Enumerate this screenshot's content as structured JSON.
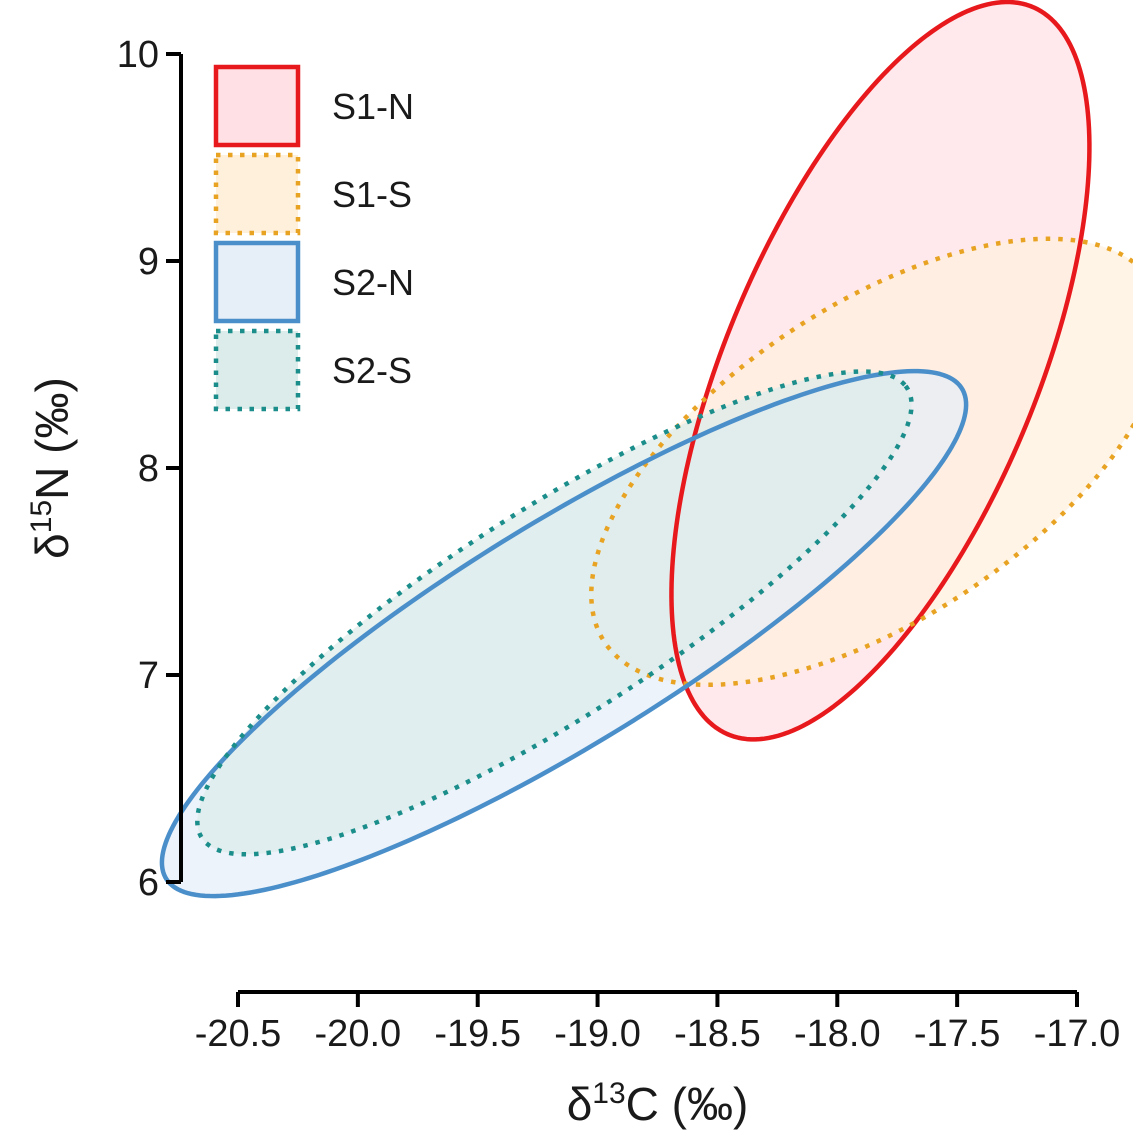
{
  "chart_data": {
    "type": "scatter",
    "subtype": "standard-ellipses",
    "xlabel": {
      "base": "δ",
      "sup": "13",
      "rest": "C (‰)"
    },
    "ylabel": {
      "base": "δ",
      "sup": "15",
      "rest": "N (‰)"
    },
    "xlim": [
      -20.5,
      -17.0
    ],
    "ylim": [
      6,
      10
    ],
    "x_ticks": [
      -20.5,
      -20.0,
      -19.5,
      -19.0,
      -18.5,
      -18.0,
      -17.5,
      -17.0
    ],
    "x_tick_labels": [
      "-20.5",
      "-20.0",
      "-19.5",
      "-19.0",
      "-18.5",
      "-18.0",
      "-17.5",
      "-17.0"
    ],
    "y_ticks": [
      6,
      7,
      8,
      9,
      10
    ],
    "y_tick_labels": [
      "6",
      "7",
      "8",
      "9",
      "10"
    ],
    "grid": false,
    "legend_position": "top-left",
    "series": [
      {
        "name": "S1-N",
        "line": "solid",
        "stroke": "#e8191c",
        "fill": "#ffe0e4",
        "ellipse": {
          "center": [
            -17.82,
            8.47
          ],
          "semi_major": 1.87,
          "semi_minor": 0.66,
          "angle_deg": 71
        }
      },
      {
        "name": "S1-S",
        "line": "dotted",
        "stroke": "#e8a323",
        "fill": "#fff0dc",
        "ellipse": {
          "center": [
            -17.83,
            8.03
          ],
          "semi_major": 1.44,
          "semi_minor": 0.72,
          "angle_deg": 40
        }
      },
      {
        "name": "S2-N",
        "line": "solid",
        "stroke": "#4a8fca",
        "fill": "#e6eef8",
        "ellipse": {
          "center": [
            -19.14,
            7.2
          ],
          "semi_major": 2.04,
          "semi_minor": 0.51,
          "angle_deg": 36
        }
      },
      {
        "name": "S2-S",
        "line": "dotted",
        "stroke": "#1b8e8b",
        "fill": "#dcecea",
        "ellipse": {
          "center": [
            -19.18,
            7.3
          ],
          "semi_major": 1.83,
          "semi_minor": 0.48,
          "angle_deg": 37
        }
      }
    ]
  }
}
